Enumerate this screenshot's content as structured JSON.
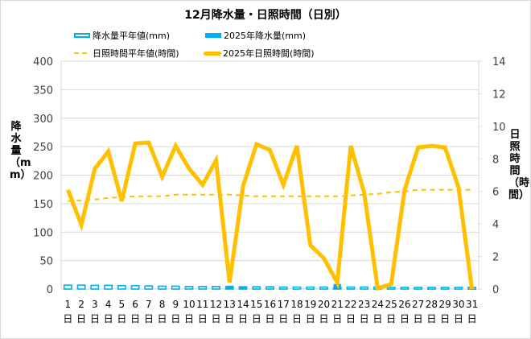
{
  "chart_data": {
    "type": "bar+line",
    "title": "12月降水量・日照時間（日別）",
    "categories": [
      "1日",
      "2日",
      "3日",
      "4日",
      "5日",
      "6日",
      "7日",
      "8日",
      "9日",
      "10日",
      "11日",
      "12日",
      "13日",
      "14日",
      "15日",
      "16日",
      "17日",
      "18日",
      "19日",
      "20日",
      "21日",
      "22日",
      "23日",
      "24日",
      "25日",
      "26日",
      "27日",
      "28日",
      "29日",
      "30日",
      "31日"
    ],
    "x_tick_numbers": [
      "1",
      "2",
      "3",
      "4",
      "5",
      "6",
      "7",
      "8",
      "9",
      "10",
      "11",
      "12",
      "13",
      "14",
      "15",
      "16",
      "17",
      "18",
      "19",
      "20",
      "21",
      "22",
      "23",
      "24",
      "25",
      "26",
      "27",
      "28",
      "29",
      "30",
      "31"
    ],
    "x_tick_suffix": "日",
    "left_axis": {
      "label": "降水量（mm）",
      "min": 0,
      "max": 400,
      "step": 50,
      "ticks": [
        "0",
        "50",
        "100",
        "150",
        "200",
        "250",
        "300",
        "350",
        "400"
      ]
    },
    "right_axis": {
      "label": "日照時間（時間）",
      "min": 0,
      "max": 14,
      "step": 2,
      "ticks": [
        "0",
        "2",
        "4",
        "6",
        "8",
        "10",
        "12",
        "14"
      ]
    },
    "grid": true,
    "legend_position": "top",
    "series": [
      {
        "name": "降水量平年値(mm)",
        "type": "bar",
        "style": "hollow",
        "axis": "left",
        "color": "#00b0f0",
        "values": [
          7,
          7,
          6.5,
          6.5,
          6,
          6,
          5.5,
          5,
          5,
          4.5,
          4.5,
          4.5,
          4,
          4,
          4,
          4,
          3.5,
          3.5,
          3.5,
          3.5,
          3.5,
          3.5,
          3.5,
          3.5,
          3,
          3,
          3,
          3,
          3,
          3,
          3
        ]
      },
      {
        "name": "2025年降水量(mm)",
        "type": "bar",
        "style": "solid",
        "axis": "left",
        "color": "#00b0f0",
        "values": [
          0,
          0,
          0,
          0,
          0,
          0,
          0,
          0,
          0,
          0,
          0,
          0,
          6,
          3,
          1,
          0,
          0,
          0,
          0,
          0.5,
          9,
          1,
          0,
          0,
          0,
          0,
          0,
          0,
          0,
          0,
          0
        ]
      },
      {
        "name": "日照時間平年値(時間)",
        "type": "line",
        "style": "dashed",
        "axis": "right",
        "color": "#ffc000",
        "values": [
          5.4,
          5.45,
          5.5,
          5.6,
          5.65,
          5.7,
          5.7,
          5.7,
          5.8,
          5.8,
          5.8,
          5.8,
          5.8,
          5.75,
          5.7,
          5.7,
          5.7,
          5.7,
          5.7,
          5.7,
          5.7,
          5.75,
          5.8,
          5.85,
          5.95,
          6.0,
          6.1,
          6.1,
          6.1,
          6.1,
          6.1
        ]
      },
      {
        "name": "2025年日照時間(時間)",
        "type": "line",
        "style": "thick",
        "axis": "right",
        "color": "#ffc000",
        "values": [
          6.1,
          3.95,
          7.4,
          8.45,
          5.4,
          8.95,
          9.0,
          6.9,
          8.8,
          7.4,
          6.4,
          7.9,
          0.4,
          6.3,
          8.9,
          8.55,
          6.4,
          8.8,
          2.7,
          1.9,
          0.4,
          8.8,
          5.9,
          0.05,
          0.3,
          6.1,
          8.7,
          8.8,
          8.7,
          6.25,
          0.0
        ]
      }
    ]
  },
  "legend": [
    {
      "label": "降水量平年値(mm)",
      "swatch": "hollow-bar"
    },
    {
      "label": "2025年降水量(mm)",
      "swatch": "solid-bar"
    },
    {
      "label": "- -日照時間平年値(時間)",
      "swatch": "dashed-line",
      "text": "日照時間平年値(時間)"
    },
    {
      "label": "2025年日照時間(時間)",
      "swatch": "thick-line"
    }
  ],
  "colors": {
    "rain": "#00b0f0",
    "sun": "#ffc000",
    "grid": "#d9d9d9",
    "axis_text": "#404040"
  }
}
